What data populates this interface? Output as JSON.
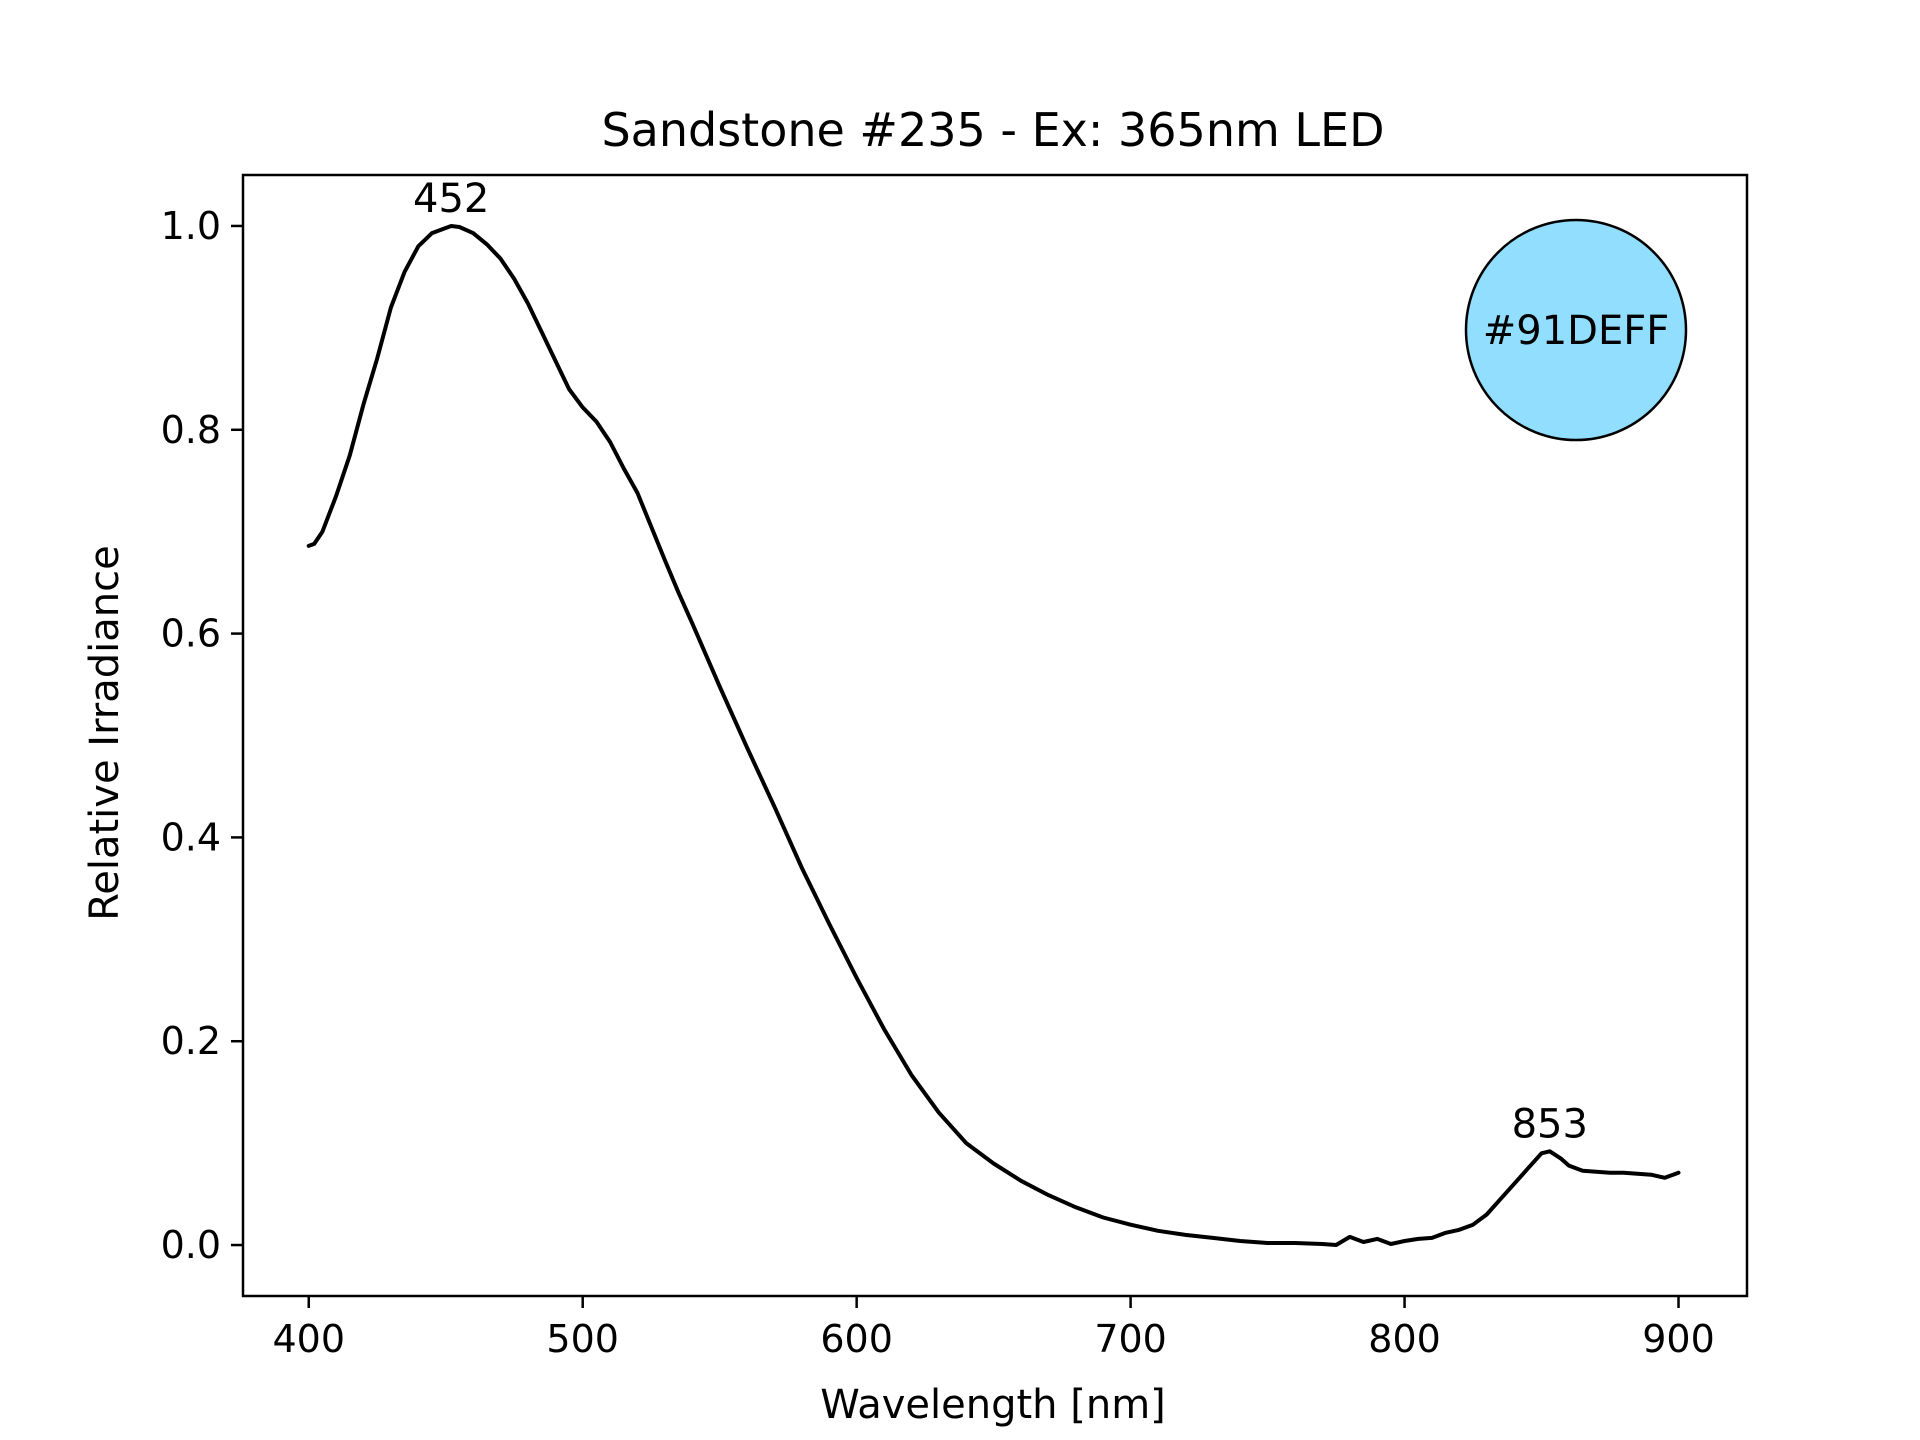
{
  "chart_data": {
    "type": "line",
    "title": "Sandstone #235 - Ex: 365nm LED",
    "xlabel": "Wavelength [nm]",
    "ylabel": "Relative Irradiance",
    "xlim": [
      376,
      925
    ],
    "ylim": [
      -0.05,
      1.05
    ],
    "grid": false,
    "legend": "none",
    "x_ticks": [
      400,
      500,
      600,
      700,
      800,
      900
    ],
    "x_tick_labels": [
      "400",
      "500",
      "600",
      "700",
      "800",
      "900"
    ],
    "y_ticks": [
      0.0,
      0.2,
      0.4,
      0.6,
      0.8,
      1.0
    ],
    "y_tick_labels": [
      "0.0",
      "0.2",
      "0.4",
      "0.6",
      "0.8",
      "1.0"
    ],
    "series": [
      {
        "color": "#000000",
        "x": [
          400,
          402,
          405,
          410,
          415,
          420,
          425,
          430,
          435,
          440,
          445,
          450,
          452,
          455,
          460,
          465,
          470,
          475,
          480,
          485,
          490,
          495,
          500,
          505,
          510,
          515,
          520,
          525,
          530,
          535,
          540,
          550,
          560,
          570,
          580,
          590,
          600,
          610,
          620,
          630,
          640,
          650,
          660,
          670,
          680,
          690,
          700,
          710,
          720,
          730,
          740,
          750,
          760,
          770,
          775,
          780,
          785,
          790,
          795,
          800,
          805,
          810,
          815,
          820,
          825,
          830,
          835,
          840,
          845,
          850,
          853,
          857,
          860,
          865,
          870,
          875,
          880,
          885,
          890,
          895,
          900
        ],
        "y": [
          0.686,
          0.688,
          0.7,
          0.735,
          0.775,
          0.825,
          0.87,
          0.92,
          0.955,
          0.98,
          0.993,
          0.998,
          1.0,
          0.999,
          0.993,
          0.982,
          0.968,
          0.948,
          0.924,
          0.896,
          0.868,
          0.84,
          0.822,
          0.808,
          0.788,
          0.762,
          0.738,
          0.705,
          0.672,
          0.64,
          0.61,
          0.548,
          0.488,
          0.43,
          0.37,
          0.315,
          0.262,
          0.212,
          0.167,
          0.13,
          0.1,
          0.08,
          0.063,
          0.049,
          0.037,
          0.027,
          0.02,
          0.014,
          0.01,
          0.007,
          0.004,
          0.002,
          0.002,
          0.001,
          0.0,
          0.008,
          0.003,
          0.006,
          0.001,
          0.004,
          0.006,
          0.007,
          0.012,
          0.015,
          0.02,
          0.03,
          0.045,
          0.06,
          0.075,
          0.09,
          0.092,
          0.085,
          0.078,
          0.073,
          0.072,
          0.071,
          0.071,
          0.07,
          0.069,
          0.066,
          0.071
        ]
      }
    ],
    "annotations": [
      {
        "text": "452",
        "x": 452,
        "y": 1.0
      },
      {
        "text": "853",
        "x": 853,
        "y": 0.092
      }
    ],
    "color_swatch": {
      "label": "#91DEFF",
      "fill": "#91DEFF",
      "placement": "top-right"
    }
  }
}
